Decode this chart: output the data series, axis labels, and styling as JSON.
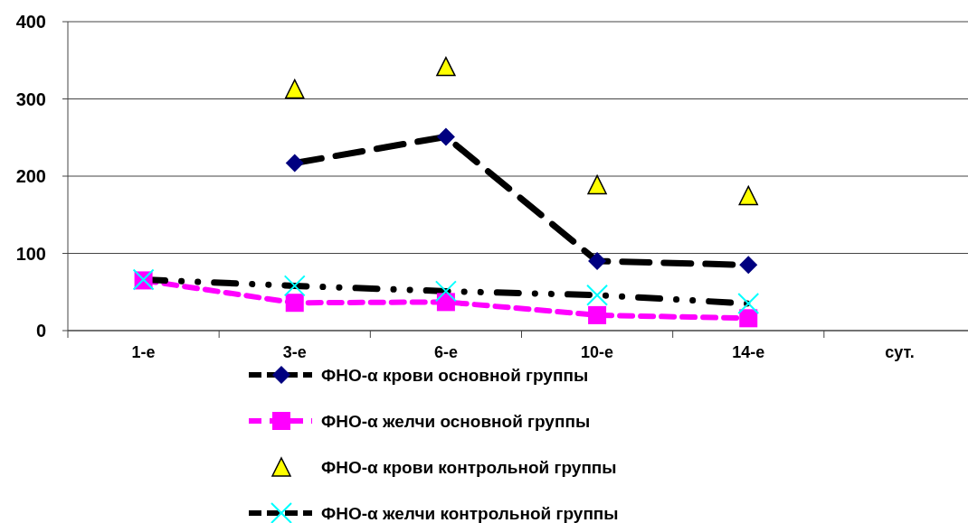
{
  "chart_data": {
    "type": "line",
    "categories": [
      "1-е",
      "3-е",
      "6-е",
      "10-е",
      "14-е",
      "сут."
    ],
    "ylim": [
      0,
      400
    ],
    "yticks": [
      0,
      100,
      200,
      300,
      400
    ],
    "grid": "y",
    "legend": "bottom",
    "series": [
      {
        "name": "ФНО-α крови основной группы",
        "color": "#000000",
        "colors": [
          null,
          "#000080",
          "#000080",
          "#000080",
          "#000080",
          null
        ],
        "marker": "diamond",
        "line_style": "dashed",
        "values": [
          null,
          217,
          251,
          90,
          85,
          null
        ]
      },
      {
        "name": "ФНО-α желчи основной группы",
        "color": "#ff00ff",
        "marker": "square",
        "line_style": "dashed",
        "values": [
          65,
          36,
          37,
          20,
          16,
          null
        ]
      },
      {
        "name": "ФНО-α крови контрольной группы",
        "type": "scatter",
        "color": "#ffff00",
        "marker": "triangle",
        "values": [
          null,
          313,
          342,
          189,
          175,
          null
        ]
      },
      {
        "name": "ФНО-α желчи контрольной группы",
        "color": "#000000",
        "colors": [
          "#00ffff",
          "#00ffff",
          "#00ffff",
          "#00ffff",
          "#00ffff",
          null
        ],
        "marker": "cross",
        "line_style": "dotted",
        "values": [
          66,
          58,
          51,
          46,
          35,
          null
        ]
      }
    ]
  }
}
